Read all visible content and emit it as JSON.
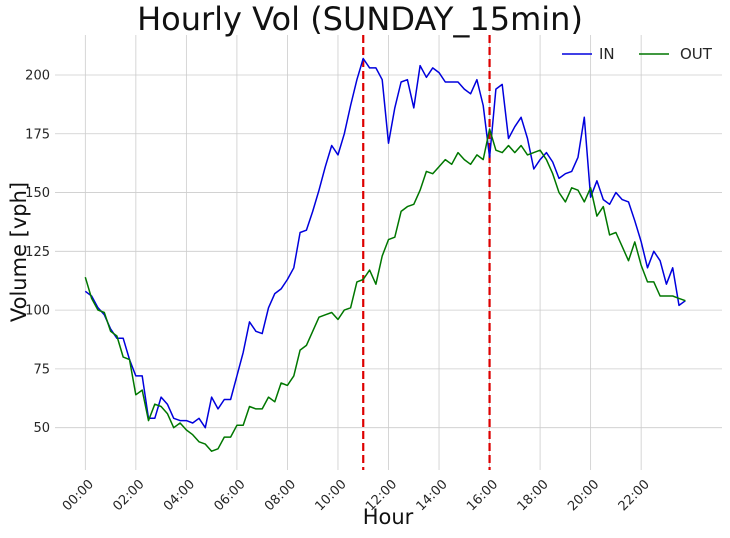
{
  "chart_data": {
    "type": "line",
    "title": "Hourly Vol (SUNDAY_15min)",
    "xlabel": "Hour",
    "ylabel": "Volume [vph]",
    "x_unit": "15-minute interval",
    "xlim": [
      -4.8,
      100.8
    ],
    "ylim": [
      32,
      217
    ],
    "grid": true,
    "legend": "top-right",
    "x_ticks": [
      {
        "x": 0,
        "label": "00:00"
      },
      {
        "x": 8,
        "label": "02:00"
      },
      {
        "x": 16,
        "label": "04:00"
      },
      {
        "x": 24,
        "label": "06:00"
      },
      {
        "x": 32,
        "label": "08:00"
      },
      {
        "x": 40,
        "label": "10:00"
      },
      {
        "x": 48,
        "label": "12:00"
      },
      {
        "x": 56,
        "label": "14:00"
      },
      {
        "x": 64,
        "label": "16:00"
      },
      {
        "x": 72,
        "label": "18:00"
      },
      {
        "x": 80,
        "label": "20:00"
      },
      {
        "x": 88,
        "label": "22:00"
      }
    ],
    "y_ticks": [
      50,
      75,
      100,
      125,
      150,
      175,
      200
    ],
    "vlines": [
      {
        "x": 44,
        "color": "#dd0000"
      },
      {
        "x": 64,
        "color": "#dd0000"
      }
    ],
    "series": [
      {
        "name": "IN",
        "color": "#0000dd",
        "values": [
          108,
          106,
          101,
          98,
          92,
          88,
          88,
          79,
          72,
          72,
          54,
          54,
          63,
          60,
          54,
          53,
          53,
          52,
          54,
          50,
          63,
          58,
          62,
          62,
          72,
          82,
          95,
          91,
          90,
          101,
          107,
          109,
          113,
          118,
          133,
          134,
          142,
          151,
          161,
          170,
          166,
          175,
          187,
          198,
          207,
          203,
          203,
          198,
          171,
          186,
          197,
          198,
          186,
          204,
          199,
          203,
          201,
          197,
          197,
          197,
          194,
          192,
          198,
          187,
          165,
          194,
          196,
          173,
          178,
          182,
          173,
          160,
          164,
          167,
          163,
          156,
          158,
          159,
          165,
          182,
          148,
          155,
          147,
          145,
          150,
          147,
          146,
          138,
          129,
          118,
          125,
          121,
          111,
          118,
          102,
          104
        ]
      },
      {
        "name": "OUT",
        "color": "#007700",
        "values": [
          114,
          105,
          100,
          99,
          91,
          89,
          80,
          79,
          64,
          66,
          53,
          60,
          59,
          56,
          50,
          52,
          49,
          47,
          44,
          43,
          40,
          41,
          46,
          46,
          51,
          51,
          59,
          58,
          58,
          63,
          61,
          69,
          68,
          72,
          83,
          85,
          91,
          97,
          98,
          99,
          96,
          100,
          101,
          112,
          113,
          117,
          111,
          123,
          130,
          131,
          142,
          144,
          145,
          151,
          159,
          158,
          161,
          164,
          162,
          167,
          164,
          162,
          166,
          164,
          177,
          168,
          167,
          170,
          167,
          170,
          166,
          167,
          168,
          164,
          158,
          150,
          146,
          152,
          151,
          146,
          152,
          140,
          144,
          132,
          133,
          127,
          121,
          129,
          119,
          112,
          112,
          106,
          106,
          106,
          105,
          104
        ]
      }
    ]
  }
}
